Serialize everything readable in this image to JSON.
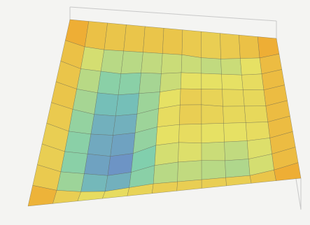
{
  "chart_data": {
    "type": "surface",
    "zlim": [
      0,
      10
    ],
    "z": [
      [
        10,
        10,
        10,
        10,
        10,
        10,
        10,
        10,
        10,
        10,
        10,
        10
      ],
      [
        10,
        7,
        6,
        6,
        6,
        6,
        6,
        5,
        5,
        6,
        7,
        10
      ],
      [
        10,
        6,
        5,
        4,
        5,
        5,
        6,
        6,
        6,
        6,
        7,
        10
      ],
      [
        10,
        6,
        4,
        3,
        4,
        5,
        7,
        7,
        7,
        7,
        7,
        10
      ],
      [
        10,
        6,
        3,
        2,
        3,
        6,
        8,
        8,
        7,
        7,
        7,
        10
      ],
      [
        10,
        5,
        3,
        2,
        3,
        6,
        7,
        7,
        7,
        7,
        7,
        10
      ],
      [
        10,
        5,
        3,
        1,
        2,
        6,
        7,
        6,
        6,
        6,
        7,
        10
      ],
      [
        10,
        5,
        3,
        1,
        2,
        5,
        6,
        6,
        5,
        5,
        7,
        10
      ],
      [
        10,
        6,
        4,
        3,
        4,
        5,
        5,
        5,
        5,
        5,
        7,
        10
      ],
      [
        10,
        10,
        10,
        10,
        10,
        10,
        10,
        10,
        10,
        10,
        10,
        10
      ]
    ]
  }
}
